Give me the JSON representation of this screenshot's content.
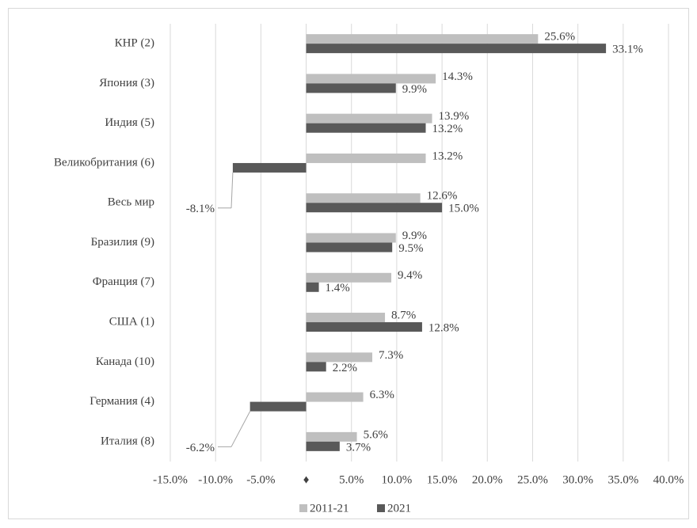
{
  "chart_data": {
    "type": "hbar",
    "categories": [
      "КНР (2)",
      "Япония (3)",
      "Индия (5)",
      "Великобритания (6)",
      "Весь мир",
      "Бразилия (9)",
      "Франция (7)",
      "США (1)",
      "Канада (10)",
      "Германия (4)",
      "Италия (8)"
    ],
    "series": [
      {
        "name": "2011-21",
        "color": "#bfbfbf",
        "values": [
          25.6,
          14.3,
          13.9,
          13.2,
          12.6,
          9.9,
          9.4,
          8.7,
          7.3,
          6.3,
          5.6
        ],
        "value_labels": [
          "25.6%",
          "14.3%",
          "13.9%",
          "13.2%",
          "12.6%",
          "9.9%",
          "9.4%",
          "8.7%",
          "7.3%",
          "6.3%",
          "5.6%"
        ]
      },
      {
        "name": "2021",
        "color": "#595959",
        "values": [
          33.1,
          9.9,
          13.2,
          -8.1,
          15.0,
          9.5,
          1.4,
          12.8,
          2.2,
          -6.2,
          3.7
        ],
        "value_labels": [
          "33.1%",
          "9.9%",
          "13.2%",
          "-8.1%",
          "15.0%",
          "9.5%",
          "1.4%",
          "12.8%",
          "2.2%",
          "-6.2%",
          "3.7%"
        ]
      }
    ],
    "xlim": [
      -15,
      40
    ],
    "xticks": [
      {
        "value": -15,
        "label": "-15.0%"
      },
      {
        "value": -10,
        "label": "-10.0%"
      },
      {
        "value": -5,
        "label": "-5.0%"
      },
      {
        "value": 0,
        "label": "♦"
      },
      {
        "value": 5,
        "label": "5.0%"
      },
      {
        "value": 10,
        "label": "10.0%"
      },
      {
        "value": 15,
        "label": "15.0%"
      },
      {
        "value": 20,
        "label": "20.0%"
      },
      {
        "value": 25,
        "label": "25.0%"
      },
      {
        "value": 30,
        "label": "30.0%"
      },
      {
        "value": 35,
        "label": "35.0%"
      },
      {
        "value": 40,
        "label": "40.0%"
      }
    ],
    "grid": true,
    "legend": "bottom"
  }
}
